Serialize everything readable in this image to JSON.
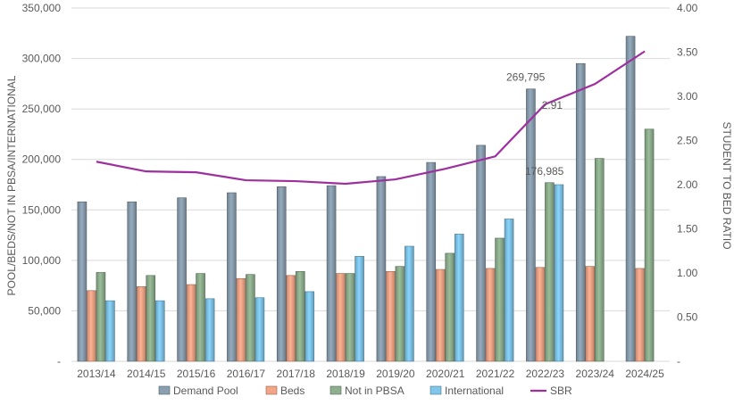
{
  "chart_data": {
    "type": "bar",
    "categories": [
      "2013/14",
      "2014/15",
      "2015/16",
      "2016/17",
      "2017/18",
      "2018/19",
      "2019/20",
      "2020/21",
      "2021/22",
      "2022/23",
      "2023/24",
      "2024/25"
    ],
    "series": [
      {
        "name": "Demand Pool",
        "color": "#8a9fb0",
        "axis": "left",
        "values": [
          158000,
          158000,
          162000,
          167000,
          173000,
          174000,
          183000,
          197000,
          214000,
          269795,
          295000,
          322000
        ]
      },
      {
        "name": "Beds",
        "color": "#f2a587",
        "axis": "left",
        "values": [
          70000,
          74000,
          76000,
          82000,
          85000,
          87000,
          89000,
          91000,
          92000,
          93000,
          94000,
          92000
        ]
      },
      {
        "name": "Not in PBSA",
        "color": "#8fb08f",
        "axis": "left",
        "values": [
          88000,
          85000,
          87000,
          86000,
          89000,
          87000,
          94000,
          107000,
          122000,
          176985,
          201000,
          230000
        ]
      },
      {
        "name": "International",
        "color": "#7fc6ea",
        "axis": "left",
        "values": [
          60000,
          60000,
          62000,
          63000,
          69000,
          104000,
          114000,
          126000,
          141000,
          175000,
          null,
          null
        ]
      }
    ],
    "line_series": {
      "name": "SBR",
      "color": "#9e2f9e",
      "axis": "right",
      "values": [
        2.26,
        2.15,
        2.14,
        2.05,
        2.04,
        2.01,
        2.06,
        2.18,
        2.32,
        2.91,
        3.14,
        3.51
      ]
    },
    "ylabel": "POOL/BEDS/NOT IN PBSA/INTERNATIONAL",
    "y2label": "STUDENT TO BED RATIO",
    "ylim": [
      0,
      350000
    ],
    "y2lim": [
      0,
      4
    ],
    "y_ticks": [
      "-",
      "50,000",
      "100,000",
      "150,000",
      "200,000",
      "250,000",
      "300,000",
      "350,000"
    ],
    "y2_ticks": [
      "-",
      "0.50",
      "1.00",
      "1.50",
      "2.00",
      "2.50",
      "3.00",
      "3.50",
      "4.00"
    ],
    "annotations": [
      {
        "text": "269,795",
        "category": "2022/23",
        "series": "Demand Pool"
      },
      {
        "text": "176,985",
        "category": "2022/23",
        "series": "Not in PBSA"
      },
      {
        "text": "2.91",
        "category": "2022/23",
        "series": "SBR"
      }
    ],
    "grid": true,
    "legend_position": "bottom"
  }
}
